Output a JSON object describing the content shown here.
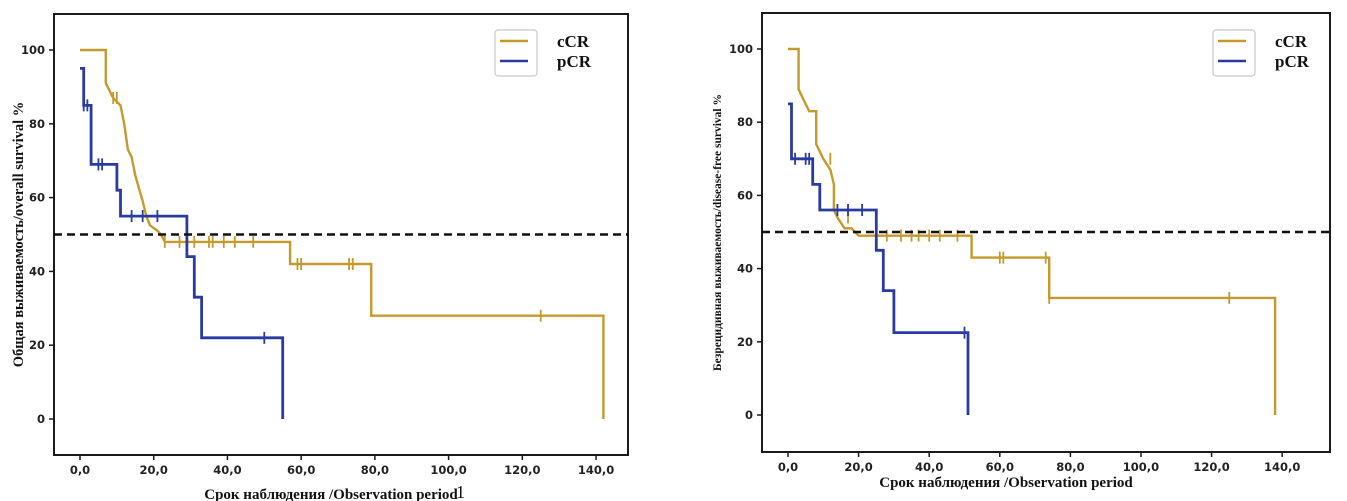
{
  "colors": {
    "cCR": "#c49a2c",
    "pCR": "#2a3ba0",
    "median_line": "#111111",
    "frame": "#1a1a1a"
  },
  "chart_data": [
    {
      "type": "line",
      "subtype": "kaplan-meier step",
      "title": "",
      "xlabel": "Срок наблюдения /Observation period",
      "ylabel": "Общая выживаемость/overall survival %",
      "xlim": [
        -7,
        150
      ],
      "ylim": [
        -10,
        110
      ],
      "xticks": [
        0,
        20,
        40,
        60,
        80,
        100,
        120,
        140
      ],
      "xtick_labels": [
        "0,0",
        "20,0",
        "40,0",
        "60,0",
        "80,0",
        "100,0",
        "120,0",
        "140,0"
      ],
      "yticks": [
        0,
        20,
        40,
        60,
        80,
        100
      ],
      "ytick_labels": [
        "0",
        "20",
        "40",
        "60",
        "80",
        "100"
      ],
      "reference_line": {
        "y": 50,
        "style": "dashed"
      },
      "legend": {
        "position": "top-right",
        "entries": [
          "cCR",
          "pCR"
        ]
      },
      "stray_text": "1",
      "series": [
        {
          "name": "cCR",
          "steps": [
            [
              0,
              100
            ],
            [
              7,
              100
            ],
            [
              7,
              91
            ],
            [
              8,
              89
            ],
            [
              9,
              87
            ],
            [
              11,
              85
            ],
            [
              12,
              80
            ],
            [
              13,
              73
            ],
            [
              14,
              71
            ],
            [
              15,
              66
            ],
            [
              17,
              59
            ],
            [
              18,
              55
            ],
            [
              19,
              52.5
            ],
            [
              21,
              51
            ],
            [
              22,
              50
            ],
            [
              23,
              48
            ],
            [
              57,
              48
            ],
            [
              57,
              42
            ],
            [
              79,
              42
            ],
            [
              79,
              28
            ],
            [
              142,
              28
            ],
            [
              142,
              0
            ]
          ],
          "censored": [
            [
              9,
              87
            ],
            [
              10,
              87
            ],
            [
              23,
              48
            ],
            [
              27,
              48
            ],
            [
              31,
              48
            ],
            [
              35,
              48
            ],
            [
              36,
              48
            ],
            [
              39,
              48
            ],
            [
              42,
              48
            ],
            [
              47,
              48
            ],
            [
              59,
              42
            ],
            [
              60,
              42
            ],
            [
              73,
              42
            ],
            [
              74,
              42
            ],
            [
              125,
              28
            ]
          ]
        },
        {
          "name": "pCR",
          "steps": [
            [
              0,
              95
            ],
            [
              1,
              95
            ],
            [
              1,
              85
            ],
            [
              3,
              85
            ],
            [
              3,
              69
            ],
            [
              10,
              69
            ],
            [
              10,
              62
            ],
            [
              11,
              62
            ],
            [
              11,
              55
            ],
            [
              29,
              55
            ],
            [
              29,
              44
            ],
            [
              31,
              44
            ],
            [
              31,
              33
            ],
            [
              33,
              33
            ],
            [
              33,
              22
            ],
            [
              55,
              22
            ],
            [
              55,
              0
            ]
          ],
          "censored": [
            [
              1,
              85
            ],
            [
              2,
              85
            ],
            [
              5,
              69
            ],
            [
              6,
              69
            ],
            [
              14,
              55
            ],
            [
              17,
              55
            ],
            [
              21,
              55
            ],
            [
              50,
              22
            ]
          ]
        }
      ]
    },
    {
      "type": "line",
      "subtype": "kaplan-meier step",
      "title": "",
      "xlabel": "Срок наблюдения /Observation period",
      "ylabel": "Безрецидивная выживаемость/disease-free survival %",
      "xlim": [
        -7,
        145
      ],
      "ylim": [
        -10,
        110
      ],
      "xticks": [
        0,
        20,
        40,
        60,
        80,
        100,
        120,
        140
      ],
      "xtick_labels": [
        "0,0",
        "20,0",
        "40,0",
        "60,0",
        "80,0",
        "100,0",
        "120,0",
        "140,0"
      ],
      "yticks": [
        0,
        20,
        40,
        60,
        80,
        100
      ],
      "ytick_labels": [
        "0",
        "20",
        "40",
        "60",
        "80",
        "100"
      ],
      "reference_line": {
        "y": 50,
        "style": "dashed"
      },
      "legend": {
        "position": "top-right",
        "entries": [
          "cCR",
          "pCR"
        ]
      },
      "series": [
        {
          "name": "cCR",
          "steps": [
            [
              0,
              100
            ],
            [
              3,
              100
            ],
            [
              3,
              89
            ],
            [
              4,
              87
            ],
            [
              5,
              85
            ],
            [
              6,
              83
            ],
            [
              8,
              83
            ],
            [
              8,
              74
            ],
            [
              9,
              72
            ],
            [
              10,
              70
            ],
            [
              12,
              67
            ],
            [
              13,
              63
            ],
            [
              13,
              56
            ],
            [
              14,
              54
            ],
            [
              16,
              51
            ],
            [
              18,
              51
            ],
            [
              20,
              49
            ],
            [
              52,
              49
            ],
            [
              52,
              43
            ],
            [
              74,
              43
            ],
            [
              74,
              32
            ],
            [
              138,
              32
            ],
            [
              138,
              0
            ]
          ],
          "censored": [
            [
              12,
              70
            ],
            [
              17,
              54
            ],
            [
              25,
              49
            ],
            [
              28,
              49
            ],
            [
              32,
              49
            ],
            [
              35,
              49
            ],
            [
              37,
              49
            ],
            [
              40,
              49
            ],
            [
              43,
              49
            ],
            [
              48,
              49
            ],
            [
              60,
              43
            ],
            [
              61,
              43
            ],
            [
              73,
              43
            ],
            [
              74,
              32
            ],
            [
              125,
              32
            ]
          ]
        },
        {
          "name": "pCR",
          "steps": [
            [
              0,
              85
            ],
            [
              1,
              85
            ],
            [
              1,
              70
            ],
            [
              7,
              70
            ],
            [
              7,
              63
            ],
            [
              9,
              63
            ],
            [
              9,
              56
            ],
            [
              25,
              56
            ],
            [
              25,
              45
            ],
            [
              27,
              45
            ],
            [
              27,
              34
            ],
            [
              30,
              34
            ],
            [
              30,
              22.5
            ],
            [
              51,
              22.5
            ],
            [
              51,
              0
            ]
          ],
          "censored": [
            [
              2,
              70
            ],
            [
              5,
              70
            ],
            [
              6,
              70
            ],
            [
              14,
              56
            ],
            [
              17,
              56
            ],
            [
              21,
              56
            ],
            [
              50,
              22.5
            ]
          ]
        }
      ]
    }
  ]
}
